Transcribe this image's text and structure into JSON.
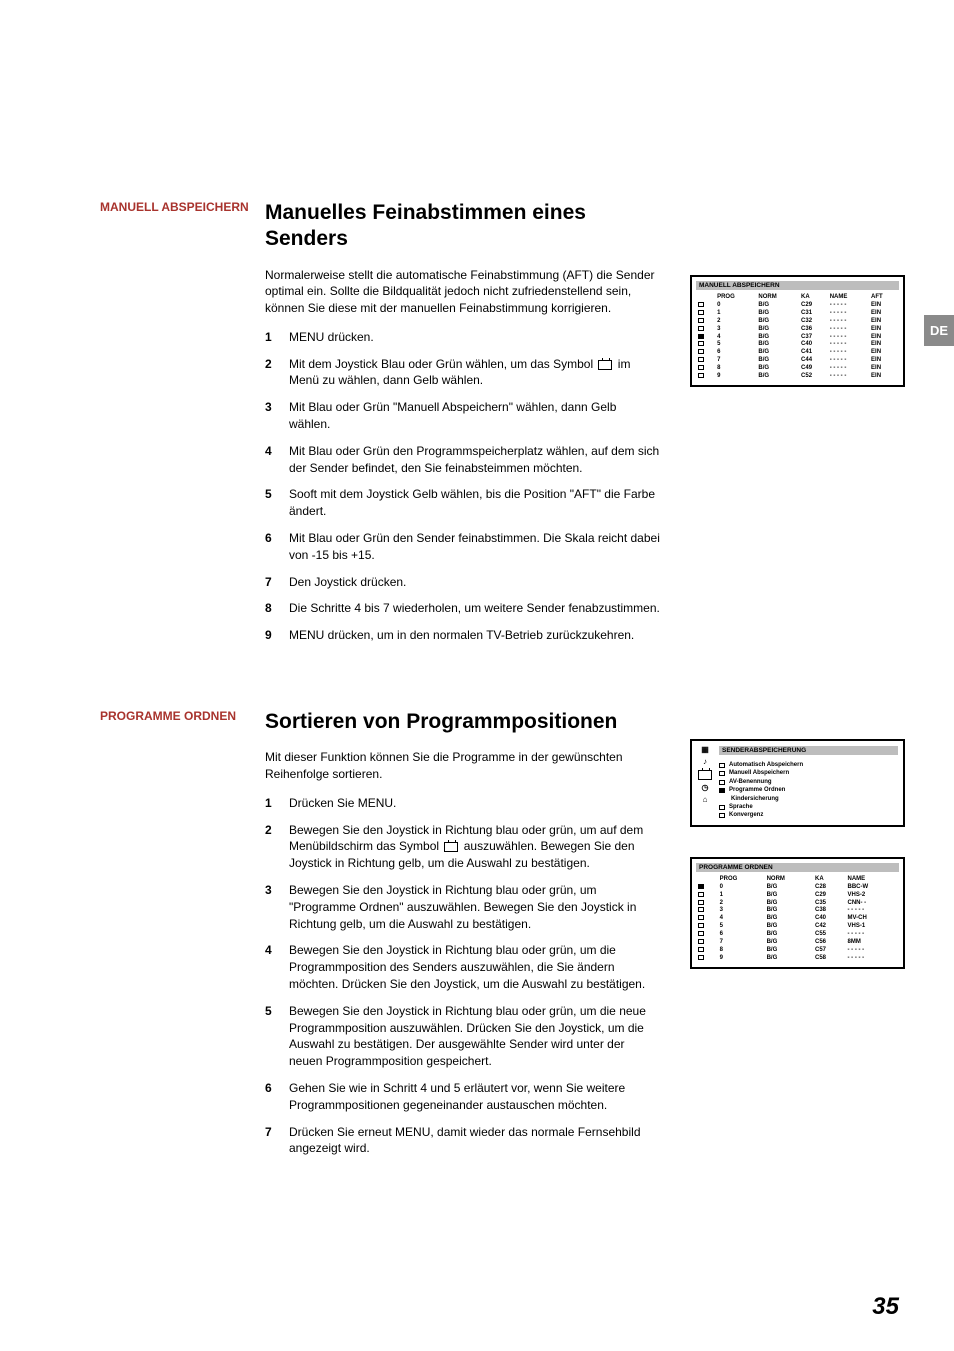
{
  "lang_tab": "DE",
  "page_number": "35",
  "section1": {
    "side_label": "MANUELL ABSPEICHERN",
    "title": "Manuelles Feinabstimmen eines Senders",
    "intro": "Normalerweise stellt die automatische Feinabstimmung (AFT) die Sender optimal ein. Sollte die Bildqualität jedoch nicht zufriedenstellend sein, können Sie diese mit der manuellen Feinabstimmung korrigieren.",
    "steps": [
      "MENU drücken.",
      "Mit dem Joystick Blau oder Grün wählen, um das Symbol ⌧ im Menü zu wählen, dann Gelb wählen.",
      "Mit Blau oder Grün \"Manuell Abspeichern\" wählen, dann Gelb wählen.",
      "Mit Blau oder Grün den Programmspeicherplatz wählen, auf dem sich der Sender befindet, den Sie feinabsteimmen möchten.",
      "Sooft mit dem Joystick Gelb wählen, bis die Position \"AFT\" die Farbe ändert.",
      "Mit Blau oder Grün den Sender feinabstimmen. Die Skala reicht dabei von -15 bis +15.",
      "Den Joystick drücken.",
      "Die Schritte 4 bis 7 wiederholen, um weitere Sender fenabzustimmen.",
      "MENU drücken, um in den normalen TV-Betrieb zurückzukehren."
    ],
    "osd": {
      "title": "MANUELL ABSPEICHERN",
      "headers": [
        "",
        "PROG",
        "NORM",
        "KA",
        "NAME",
        "AFT"
      ],
      "rows": [
        {
          "icon": "empty",
          "prog": "0",
          "norm": "B/G",
          "ka": "C29",
          "name": "- - - - -",
          "aft": "EIN"
        },
        {
          "icon": "empty",
          "prog": "1",
          "norm": "B/G",
          "ka": "C31",
          "name": "- - - - -",
          "aft": "EIN"
        },
        {
          "icon": "empty",
          "prog": "2",
          "norm": "B/G",
          "ka": "C32",
          "name": "- - - - -",
          "aft": "EIN"
        },
        {
          "icon": "empty",
          "prog": "3",
          "norm": "B/G",
          "ka": "C36",
          "name": "- - - - -",
          "aft": "EIN"
        },
        {
          "icon": "fill",
          "prog": "4",
          "norm": "B/G",
          "ka": "C37",
          "name": "- - - - -",
          "aft": "EIN"
        },
        {
          "icon": "empty",
          "prog": "5",
          "norm": "B/G",
          "ka": "C40",
          "name": "- - - - -",
          "aft": "EIN"
        },
        {
          "icon": "empty",
          "prog": "6",
          "norm": "B/G",
          "ka": "C41",
          "name": "- - - - -",
          "aft": "EIN"
        },
        {
          "icon": "empty",
          "prog": "7",
          "norm": "B/G",
          "ka": "C44",
          "name": "- - - - -",
          "aft": "EIN"
        },
        {
          "icon": "empty",
          "prog": "8",
          "norm": "B/G",
          "ka": "C49",
          "name": "- - - - -",
          "aft": "EIN"
        },
        {
          "icon": "empty",
          "prog": "9",
          "norm": "B/G",
          "ka": "C52",
          "name": "- - - - -",
          "aft": "EIN"
        }
      ]
    }
  },
  "section2": {
    "side_label": "PROGRAMME ORDNEN",
    "title": "Sortieren von Programmpositionen",
    "intro": "Mit dieser Funktion können Sie die Programme in der gewünschten Reihenfolge sortieren.",
    "steps": [
      "Drücken Sie MENU.",
      "Bewegen Sie den Joystick in Richtung blau oder grün, um auf dem Menübildschirm das Symbol ⌧ auszuwählen. Bewegen Sie den Joystick in Richtung gelb, um die Auswahl zu bestätigen.",
      "Bewegen Sie den Joystick in Richtung blau oder grün, um \"Programme Ordnen\" auszuwählen. Bewegen Sie den Joystick in Richtung gelb, um die Auswahl zu bestätigen.",
      "Bewegen Sie den Joystick in Richtung blau oder grün, um die Programmposition des Senders auszuwählen, die Sie ändern möchten. Drücken Sie den Joystick, um die Auswahl zu bestätigen.",
      "Bewegen Sie den Joystick in Richtung blau oder grün, um die neue Programmposition auszuwählen. Drücken Sie den Joystick, um die Auswahl zu bestätigen. Der ausgewählte Sender wird unter der neuen Programmposition gespeichert.",
      "Gehen Sie wie in Schritt 4 und 5 erläutert vor, wenn Sie weitere Programmpositionen gegeneinander austauschen möchten.",
      "Drücken Sie erneut MENU, damit wieder das normale Fernsehbild angezeigt wird."
    ],
    "menu_osd": {
      "title": "SENDERABSPEICHERUNG",
      "items": [
        {
          "icon": "empty",
          "label": "Automatisch Abspeichern"
        },
        {
          "icon": "empty",
          "label": "Manuell Abspeichern"
        },
        {
          "icon": "empty",
          "label": "AV-Benennung"
        },
        {
          "icon": "fill",
          "label": "Programme Ordnen"
        },
        {
          "icon": "none",
          "label": "Kindersicherung"
        },
        {
          "icon": "empty",
          "label": "Sprache"
        },
        {
          "icon": "empty",
          "label": "Konvergenz"
        }
      ]
    },
    "osd": {
      "title": "PROGRAMME ORDNEN",
      "headers": [
        "",
        "PROG",
        "NORM",
        "KA",
        "NAME"
      ],
      "rows": [
        {
          "icon": "fill",
          "prog": "0",
          "norm": "B/G",
          "ka": "C28",
          "name": "BBC-W"
        },
        {
          "icon": "empty",
          "prog": "1",
          "norm": "B/G",
          "ka": "C29",
          "name": "VHS-2"
        },
        {
          "icon": "empty",
          "prog": "2",
          "norm": "B/G",
          "ka": "C35",
          "name": "CNN- -"
        },
        {
          "icon": "empty",
          "prog": "3",
          "norm": "B/G",
          "ka": "C38",
          "name": "- - - - -"
        },
        {
          "icon": "empty",
          "prog": "4",
          "norm": "B/G",
          "ka": "C40",
          "name": "MV-CH"
        },
        {
          "icon": "empty",
          "prog": "5",
          "norm": "B/G",
          "ka": "C42",
          "name": "VHS-1"
        },
        {
          "icon": "empty",
          "prog": "6",
          "norm": "B/G",
          "ka": "C55",
          "name": "- - - - -"
        },
        {
          "icon": "empty",
          "prog": "7",
          "norm": "B/G",
          "ka": "C56",
          "name": "8MM"
        },
        {
          "icon": "empty",
          "prog": "8",
          "norm": "B/G",
          "ka": "C57",
          "name": "- - - - -"
        },
        {
          "icon": "empty",
          "prog": "9",
          "norm": "B/G",
          "ka": "C58",
          "name": "- - - - -"
        }
      ]
    }
  }
}
